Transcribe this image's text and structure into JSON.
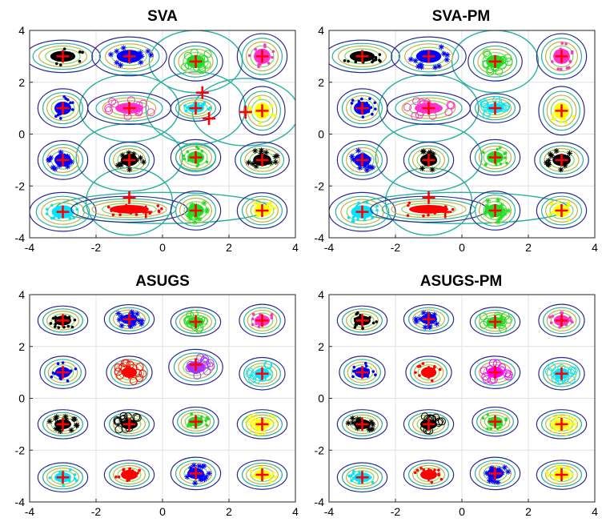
{
  "chart_data": [
    {
      "type": "scatter",
      "title": "SVA",
      "xlim": [
        -4,
        4
      ],
      "ylim": [
        -4,
        4
      ],
      "xticks": [
        "-4",
        "-2",
        "0",
        "2",
        "4"
      ],
      "yticks": [
        "-4",
        "-2",
        "0",
        "2",
        "4"
      ],
      "grid": true,
      "centers": [
        [
          -3,
          3
        ],
        [
          -1,
          3
        ],
        [
          1,
          2.8
        ],
        [
          3,
          3
        ],
        [
          -3,
          1
        ],
        [
          -1,
          1
        ],
        [
          1,
          1
        ],
        [
          1.2,
          1.6
        ],
        [
          1.4,
          0.6
        ],
        [
          2.5,
          0.85
        ],
        [
          3,
          0.9
        ],
        [
          -3,
          -1
        ],
        [
          -1,
          -1
        ],
        [
          1,
          -0.9
        ],
        [
          3,
          -1
        ],
        [
          -3,
          -3
        ],
        [
          -1,
          -2.45
        ],
        [
          -0.5,
          -3
        ],
        [
          1,
          -2.95
        ],
        [
          3,
          -2.95
        ]
      ],
      "components": [
        {
          "x": -3,
          "y": 3,
          "rx": 0.9,
          "ry": 0.5,
          "color": "#000000",
          "marker": "dot"
        },
        {
          "x": -1,
          "y": 3,
          "rx": 0.9,
          "ry": 0.6,
          "color": "#0000ff",
          "marker": "star"
        },
        {
          "x": 1,
          "y": 2.8,
          "rx": 0.65,
          "ry": 0.6,
          "color": "#22dd22",
          "marker": "circle"
        },
        {
          "x": 3,
          "y": 3,
          "rx": 0.6,
          "ry": 0.7,
          "color": "#ff33cc",
          "marker": "dot"
        },
        {
          "x": -3,
          "y": 1,
          "rx": 0.6,
          "ry": 0.6,
          "color": "#0000ff",
          "marker": "dot"
        },
        {
          "x": -1,
          "y": 1,
          "rx": 1.0,
          "ry": 0.5,
          "color": "#ff33cc",
          "marker": "circle"
        },
        {
          "x": 1,
          "y": 1,
          "rx": 0.6,
          "ry": 0.4,
          "color": "#00e5ff",
          "marker": "dot"
        },
        {
          "x": 3,
          "y": 0.9,
          "rx": 0.55,
          "ry": 0.75,
          "color": "#ffff00",
          "marker": "dot"
        },
        {
          "x": -3,
          "y": -1,
          "rx": 0.6,
          "ry": 0.6,
          "color": "#0000ff",
          "marker": "star"
        },
        {
          "x": -1,
          "y": -1,
          "rx": 0.6,
          "ry": 0.55,
          "color": "#000000",
          "marker": "star"
        },
        {
          "x": 1,
          "y": -0.9,
          "rx": 0.6,
          "ry": 0.55,
          "color": "#22dd22",
          "marker": "dot"
        },
        {
          "x": 3,
          "y": -1,
          "rx": 0.65,
          "ry": 0.55,
          "color": "#000000",
          "marker": "star"
        },
        {
          "x": -3,
          "y": -3,
          "rx": 0.8,
          "ry": 0.6,
          "color": "#00e5ff",
          "marker": "dot"
        },
        {
          "x": -1,
          "y": -2.9,
          "rx": 1.4,
          "ry": 0.4,
          "color": "#ff0000",
          "marker": "dot"
        },
        {
          "x": 1,
          "y": -2.95,
          "rx": 0.6,
          "ry": 0.6,
          "color": "#22dd22",
          "marker": "star"
        },
        {
          "x": 3,
          "y": -2.95,
          "rx": 0.6,
          "ry": 0.55,
          "color": "#ffff00",
          "marker": "dot"
        }
      ],
      "outer_ellipses": [
        {
          "x": 1,
          "y": 2.8,
          "rx": 1.4,
          "ry": 1.2
        },
        {
          "x": 1,
          "y": 1,
          "rx": 1.5,
          "ry": 1.4
        },
        {
          "x": 2.5,
          "y": 0.85,
          "rx": 1.6,
          "ry": 1.3
        },
        {
          "x": -1,
          "y": 1,
          "rx": 1.5,
          "ry": 1.3
        },
        {
          "x": -1,
          "y": -0.9,
          "rx": 1.6,
          "ry": 1.3
        },
        {
          "x": -1,
          "y": -2.6,
          "rx": 1.3,
          "ry": 1.3
        },
        {
          "x": 0,
          "y": -2.85,
          "rx": 3.2,
          "ry": 0.6
        },
        {
          "x": 1,
          "y": -0.9,
          "rx": 0.6,
          "ry": 0.5
        }
      ]
    },
    {
      "type": "scatter",
      "title": "SVA-PM",
      "xlim": [
        -4,
        4
      ],
      "ylim": [
        -4,
        4
      ],
      "xticks": [
        "-4",
        "-2",
        "0",
        "2",
        "4"
      ],
      "yticks": [
        "-4",
        "-2",
        "0",
        "2",
        "4"
      ],
      "grid": true,
      "centers": [
        [
          -3,
          3
        ],
        [
          -1,
          3
        ],
        [
          1,
          2.8
        ],
        [
          3,
          3
        ],
        [
          -3,
          1
        ],
        [
          -1,
          1
        ],
        [
          1,
          1
        ],
        [
          3,
          0.9
        ],
        [
          -3,
          -1
        ],
        [
          -1,
          -1
        ],
        [
          1,
          -0.9
        ],
        [
          3,
          -1
        ],
        [
          -3,
          -3
        ],
        [
          -1,
          -2.45
        ],
        [
          -0.5,
          -3
        ],
        [
          1,
          -2.95
        ],
        [
          3,
          -2.95
        ]
      ],
      "components": [
        {
          "x": -3,
          "y": 3,
          "rx": 0.9,
          "ry": 0.5,
          "color": "#000000",
          "marker": "dot"
        },
        {
          "x": -1,
          "y": 3,
          "rx": 0.9,
          "ry": 0.6,
          "color": "#0000ff",
          "marker": "star"
        },
        {
          "x": 1,
          "y": 2.8,
          "rx": 0.65,
          "ry": 0.6,
          "color": "#22dd22",
          "marker": "circle"
        },
        {
          "x": 3,
          "y": 3,
          "rx": 0.6,
          "ry": 0.7,
          "color": "#ff33cc",
          "marker": "dot"
        },
        {
          "x": -3,
          "y": 1,
          "rx": 0.6,
          "ry": 0.6,
          "color": "#0000ff",
          "marker": "dot"
        },
        {
          "x": -1,
          "y": 1,
          "rx": 1.0,
          "ry": 0.5,
          "color": "#ff33cc",
          "marker": "circle"
        },
        {
          "x": 1,
          "y": 1,
          "rx": 0.6,
          "ry": 0.45,
          "color": "#00e5ff",
          "marker": "circle"
        },
        {
          "x": 3,
          "y": 0.9,
          "rx": 0.55,
          "ry": 0.75,
          "color": "#ffff00",
          "marker": "dot"
        },
        {
          "x": -3,
          "y": -1,
          "rx": 0.6,
          "ry": 0.6,
          "color": "#0000ff",
          "marker": "star"
        },
        {
          "x": -1,
          "y": -1,
          "rx": 0.6,
          "ry": 0.55,
          "color": "#000000",
          "marker": "star"
        },
        {
          "x": 1,
          "y": -0.9,
          "rx": 0.6,
          "ry": 0.55,
          "color": "#22dd22",
          "marker": "dot"
        },
        {
          "x": 3,
          "y": -1,
          "rx": 0.65,
          "ry": 0.55,
          "color": "#000000",
          "marker": "star"
        },
        {
          "x": -3,
          "y": -3,
          "rx": 0.8,
          "ry": 0.6,
          "color": "#00e5ff",
          "marker": "dot"
        },
        {
          "x": -1,
          "y": -2.9,
          "rx": 1.4,
          "ry": 0.4,
          "color": "#ff0000",
          "marker": "dot"
        },
        {
          "x": 1,
          "y": -2.95,
          "rx": 0.6,
          "ry": 0.6,
          "color": "#22dd22",
          "marker": "star"
        },
        {
          "x": 3,
          "y": -2.95,
          "rx": 0.6,
          "ry": 0.55,
          "color": "#ffff00",
          "marker": "dot"
        }
      ],
      "outer_ellipses": [
        {
          "x": 1,
          "y": 2.8,
          "rx": 1.3,
          "ry": 1.2
        },
        {
          "x": -1,
          "y": 1,
          "rx": 1.5,
          "ry": 1.3
        },
        {
          "x": -1,
          "y": -0.9,
          "rx": 1.6,
          "ry": 1.3
        },
        {
          "x": -1,
          "y": -2.6,
          "rx": 1.3,
          "ry": 1.3
        },
        {
          "x": 0,
          "y": -2.85,
          "rx": 3.2,
          "ry": 0.6
        }
      ]
    },
    {
      "type": "scatter",
      "title": "ASUGS",
      "xlim": [
        -4,
        4
      ],
      "ylim": [
        -4,
        4
      ],
      "xticks": [
        "-4",
        "-2",
        "0",
        "2",
        "4"
      ],
      "yticks": [
        "-4",
        "-2",
        "0",
        "2",
        "4"
      ],
      "grid": true,
      "centers": [
        [
          -3,
          3
        ],
        [
          -1,
          3.05
        ],
        [
          1,
          2.95
        ],
        [
          3,
          3
        ],
        [
          -3,
          1
        ],
        [
          -1,
          1
        ],
        [
          1,
          1.3
        ],
        [
          3,
          0.95
        ],
        [
          -3,
          -1
        ],
        [
          -1,
          -1
        ],
        [
          1,
          -0.9
        ],
        [
          3,
          -1
        ],
        [
          -3,
          -3.05
        ],
        [
          -1,
          -2.95
        ],
        [
          1,
          -2.9
        ],
        [
          3,
          -2.95
        ]
      ],
      "components": [
        {
          "x": -3,
          "y": 3,
          "rx": 0.6,
          "ry": 0.45,
          "color": "#000000",
          "marker": "dot"
        },
        {
          "x": -1,
          "y": 3.05,
          "rx": 0.6,
          "ry": 0.45,
          "color": "#0000ff",
          "marker": "star"
        },
        {
          "x": 1,
          "y": 2.95,
          "rx": 0.6,
          "ry": 0.45,
          "color": "#22dd22",
          "marker": "circle"
        },
        {
          "x": 3,
          "y": 3,
          "rx": 0.55,
          "ry": 0.5,
          "color": "#ff33cc",
          "marker": "dot"
        },
        {
          "x": -3,
          "y": 1,
          "rx": 0.55,
          "ry": 0.5,
          "color": "#0000ff",
          "marker": "dot"
        },
        {
          "x": -1,
          "y": 1,
          "rx": 0.55,
          "ry": 0.5,
          "color": "#ff0000",
          "marker": "circle"
        },
        {
          "x": 1,
          "y": 1.2,
          "rx": 0.65,
          "ry": 0.55,
          "color": "#aa33ff",
          "marker": "circle"
        },
        {
          "x": 3,
          "y": 0.95,
          "rx": 0.55,
          "ry": 0.5,
          "color": "#00e5ff",
          "marker": "circle"
        },
        {
          "x": -3,
          "y": -1,
          "rx": 0.6,
          "ry": 0.45,
          "color": "#000000",
          "marker": "star"
        },
        {
          "x": -1,
          "y": -1,
          "rx": 0.6,
          "ry": 0.45,
          "color": "#000000",
          "marker": "circle"
        },
        {
          "x": 1,
          "y": -0.9,
          "rx": 0.55,
          "ry": 0.45,
          "color": "#22dd22",
          "marker": "dot"
        },
        {
          "x": 3,
          "y": -1,
          "rx": 0.6,
          "ry": 0.45,
          "color": "#ffff00",
          "marker": "circle"
        },
        {
          "x": -3,
          "y": -3.05,
          "rx": 0.6,
          "ry": 0.45,
          "color": "#00e5ff",
          "marker": "dot"
        },
        {
          "x": -1,
          "y": -2.95,
          "rx": 0.6,
          "ry": 0.45,
          "color": "#ff0000",
          "marker": "dot"
        },
        {
          "x": 1,
          "y": -2.9,
          "rx": 0.6,
          "ry": 0.5,
          "color": "#0000ff",
          "marker": "star"
        },
        {
          "x": 3,
          "y": -2.95,
          "rx": 0.6,
          "ry": 0.45,
          "color": "#ffff00",
          "marker": "dot"
        }
      ],
      "outer_ellipses": []
    },
    {
      "type": "scatter",
      "title": "ASUGS-PM",
      "xlim": [
        -4,
        4
      ],
      "ylim": [
        -4,
        4
      ],
      "xticks": [
        "-4",
        "-2",
        "0",
        "2",
        "4"
      ],
      "yticks": [
        "-4",
        "-2",
        "0",
        "2",
        "4"
      ],
      "grid": true,
      "centers": [
        [
          -3,
          3
        ],
        [
          -1,
          3.05
        ],
        [
          1,
          2.95
        ],
        [
          3,
          3
        ],
        [
          -3,
          1
        ],
        [
          -1,
          1
        ],
        [
          1,
          1
        ],
        [
          3,
          0.95
        ],
        [
          -3,
          -1
        ],
        [
          -1,
          -1
        ],
        [
          1,
          -0.9
        ],
        [
          3,
          -1
        ],
        [
          -3,
          -3.05
        ],
        [
          -1,
          -2.95
        ],
        [
          1,
          -2.9
        ],
        [
          3,
          -2.95
        ]
      ],
      "components": [
        {
          "x": -3,
          "y": 3,
          "rx": 0.6,
          "ry": 0.45,
          "color": "#000000",
          "marker": "dot"
        },
        {
          "x": -1,
          "y": 3.05,
          "rx": 0.6,
          "ry": 0.45,
          "color": "#0000ff",
          "marker": "star"
        },
        {
          "x": 1,
          "y": 2.95,
          "rx": 0.6,
          "ry": 0.45,
          "color": "#22dd22",
          "marker": "circle"
        },
        {
          "x": 3,
          "y": 3,
          "rx": 0.55,
          "ry": 0.5,
          "color": "#ff33cc",
          "marker": "dot"
        },
        {
          "x": -3,
          "y": 1,
          "rx": 0.55,
          "ry": 0.5,
          "color": "#0000ff",
          "marker": "dot"
        },
        {
          "x": -1,
          "y": 1,
          "rx": 0.55,
          "ry": 0.5,
          "color": "#ff0000",
          "marker": "dot"
        },
        {
          "x": 1,
          "y": 1,
          "rx": 0.6,
          "ry": 0.5,
          "color": "#ff00ff",
          "marker": "circle"
        },
        {
          "x": 3,
          "y": 0.95,
          "rx": 0.55,
          "ry": 0.5,
          "color": "#00e5ff",
          "marker": "circle"
        },
        {
          "x": -3,
          "y": -1,
          "rx": 0.6,
          "ry": 0.45,
          "color": "#000000",
          "marker": "star"
        },
        {
          "x": -1,
          "y": -1,
          "rx": 0.6,
          "ry": 0.45,
          "color": "#000000",
          "marker": "circle"
        },
        {
          "x": 1,
          "y": -0.9,
          "rx": 0.55,
          "ry": 0.45,
          "color": "#22dd22",
          "marker": "dot"
        },
        {
          "x": 3,
          "y": -1,
          "rx": 0.6,
          "ry": 0.45,
          "color": "#ffff00",
          "marker": "circle"
        },
        {
          "x": -3,
          "y": -3.05,
          "rx": 0.6,
          "ry": 0.45,
          "color": "#00e5ff",
          "marker": "dot"
        },
        {
          "x": -1,
          "y": -2.95,
          "rx": 0.6,
          "ry": 0.45,
          "color": "#ff0000",
          "marker": "dot"
        },
        {
          "x": 1,
          "y": -2.9,
          "rx": 0.6,
          "ry": 0.5,
          "color": "#0000ff",
          "marker": "star"
        },
        {
          "x": 3,
          "y": -2.95,
          "rx": 0.6,
          "ry": 0.45,
          "color": "#ffff00",
          "marker": "dot"
        }
      ],
      "outer_ellipses": []
    }
  ],
  "colors": {
    "center_marker": "#ff0000",
    "contour_outer": "#2a2a8c",
    "contour_mid": "#2ab0a0",
    "contour_inner": "#c8b040",
    "outer_ellipse": "#2ab0a0",
    "grid": "#e0e0e0",
    "axes": "#262626"
  }
}
